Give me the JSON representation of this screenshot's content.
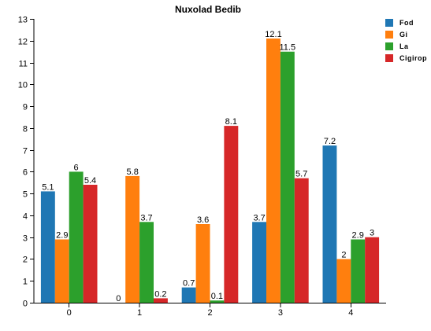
{
  "chart_data": {
    "type": "bar",
    "title": "Nuxolad Bedib",
    "xlabel": "",
    "ylabel": "",
    "categories": [
      "0",
      "1",
      "2",
      "3",
      "4"
    ],
    "ylim": [
      0,
      13
    ],
    "yticks": [
      0,
      1,
      2,
      3,
      4,
      5,
      6,
      7,
      8,
      9,
      10,
      11,
      12,
      13
    ],
    "grid": false,
    "legend_position": "top-right",
    "series": [
      {
        "name": "Fod",
        "color": "#1f77b4",
        "values": [
          5.1,
          0,
          0.7,
          3.7,
          7.2
        ]
      },
      {
        "name": "Gi",
        "color": "#ff7f0e",
        "values": [
          2.9,
          5.8,
          3.6,
          12.1,
          2
        ]
      },
      {
        "name": "La",
        "color": "#2ca02c",
        "values": [
          6,
          3.7,
          0.1,
          11.5,
          2.9
        ]
      },
      {
        "name": "Cigirop",
        "color": "#d62728",
        "values": [
          5.4,
          0.2,
          8.1,
          5.7,
          3
        ]
      }
    ]
  }
}
